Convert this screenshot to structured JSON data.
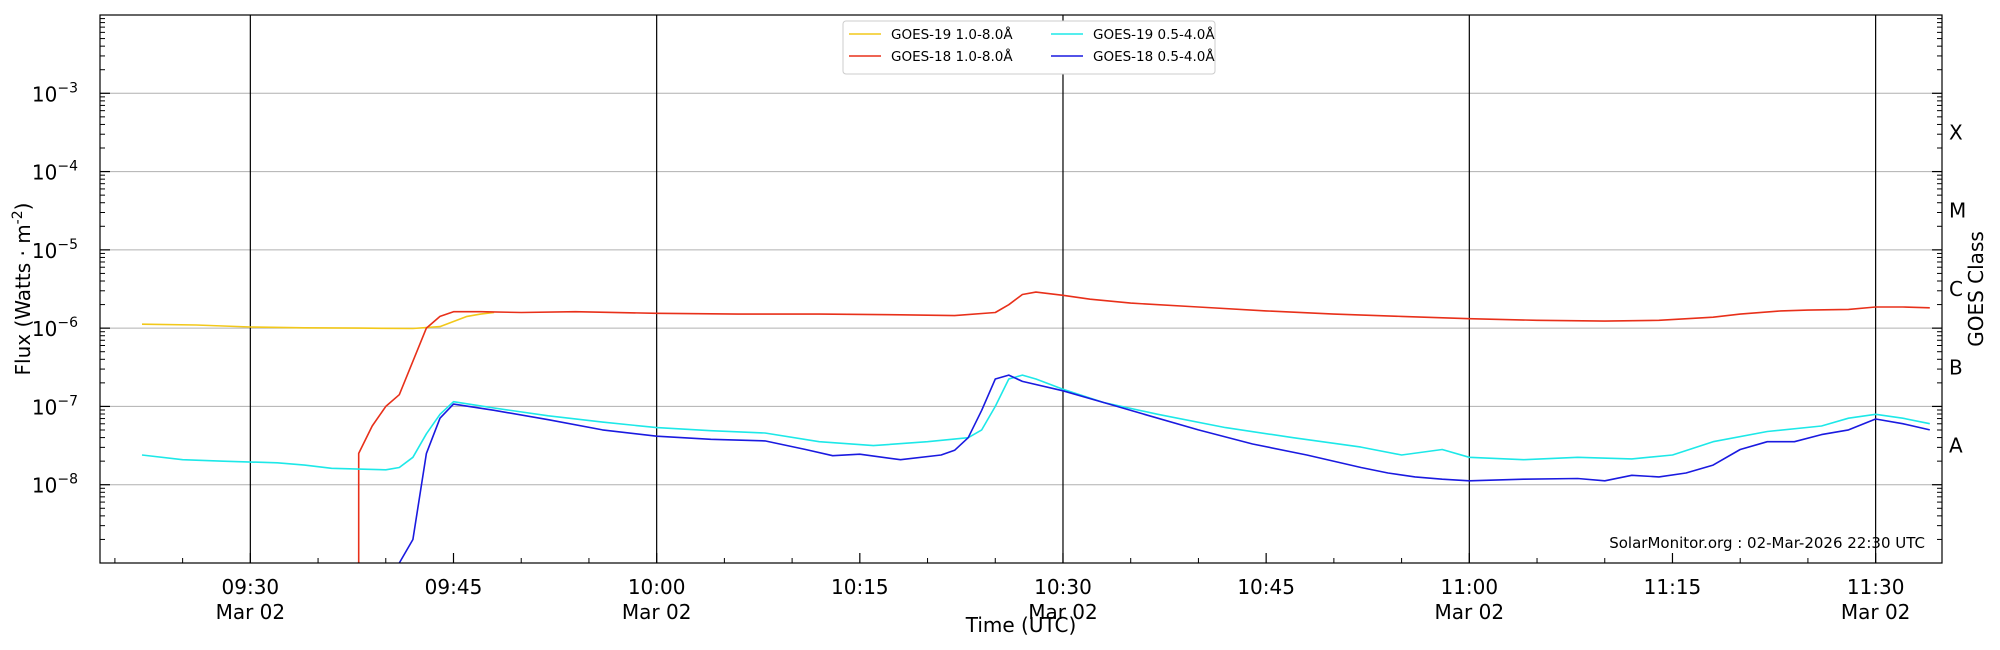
{
  "chart_data": {
    "type": "line",
    "title": "",
    "xlabel": "Time (UTC)",
    "ylabel_main": "Flux (Watts · m",
    "ylabel_sup": "-2",
    "ylabel_close": ")",
    "ylabel_right": "GOES Class",
    "yscale": "log",
    "ylim_exp": [
      -9,
      0
    ],
    "xlim_min": [
      -8,
      198
    ],
    "grid": "horizontal",
    "legend_position": "top-center",
    "y_ticks": [
      {
        "exp": -3,
        "label": "10",
        "sup": "−3"
      },
      {
        "exp": -4,
        "label": "10",
        "sup": "−4"
      },
      {
        "exp": -5,
        "label": "10",
        "sup": "−5"
      },
      {
        "exp": -6,
        "label": "10",
        "sup": "−6"
      },
      {
        "exp": -7,
        "label": "10",
        "sup": "−7"
      },
      {
        "exp": -8,
        "label": "10",
        "sup": "−8"
      }
    ],
    "x_ticks": [
      {
        "min": 0,
        "label": "09:30",
        "sub": "Mar 02",
        "vline": true
      },
      {
        "min": 15,
        "label": "09:45",
        "sub": "",
        "vline": false
      },
      {
        "min": 30,
        "label": "10:00",
        "sub": "Mar 02",
        "vline": true
      },
      {
        "min": 45,
        "label": "10:15",
        "sub": "",
        "vline": false
      },
      {
        "min": 60,
        "label": "10:30",
        "sub": "Mar 02",
        "vline": true
      },
      {
        "min": 75,
        "label": "10:45",
        "sub": "",
        "vline": false
      },
      {
        "min": 90,
        "label": "11:00",
        "sub": "Mar 02",
        "vline": true
      },
      {
        "min": 105,
        "label": "11:15",
        "sub": "",
        "vline": false
      },
      {
        "min": 120,
        "label": "11:30",
        "sub": "Mar 02",
        "vline": true
      }
    ],
    "goes_classes": [
      {
        "label": "X",
        "exp": -3.5
      },
      {
        "label": "M",
        "exp": -4.5
      },
      {
        "label": "C",
        "exp": -5.5
      },
      {
        "label": "B",
        "exp": -6.5
      },
      {
        "label": "A",
        "exp": -7.5
      }
    ],
    "annotation": "SolarMonitor.org : 02-Mar-2026 22:30 UTC",
    "series": [
      {
        "name": "GOES-19 1.0-8.0Å",
        "color": "#f2c81a",
        "points": [
          [
            -8,
            -5.95
          ],
          [
            -4,
            -5.96
          ],
          [
            0,
            -5.985
          ],
          [
            4,
            -5.995
          ],
          [
            8,
            -6.0
          ],
          [
            12,
            -6.005
          ],
          [
            14,
            -5.98
          ],
          [
            16,
            -5.85
          ],
          [
            17,
            -5.82
          ],
          [
            18,
            -5.8
          ]
        ]
      },
      {
        "name": "GOES-18 1.0-8.0Å",
        "color": "#e8301a",
        "points": [
          [
            8,
            -9.0
          ],
          [
            8,
            -7.6
          ],
          [
            9,
            -7.25
          ],
          [
            10,
            -7.0
          ],
          [
            11,
            -6.85
          ],
          [
            13,
            -6.0
          ],
          [
            14,
            -5.85
          ],
          [
            15,
            -5.79
          ],
          [
            17,
            -5.79
          ],
          [
            20,
            -5.8
          ],
          [
            24,
            -5.79
          ],
          [
            30,
            -5.81
          ],
          [
            36,
            -5.82
          ],
          [
            42,
            -5.82
          ],
          [
            48,
            -5.83
          ],
          [
            52,
            -5.84
          ],
          [
            55,
            -5.8
          ],
          [
            56,
            -5.7
          ],
          [
            57,
            -5.57
          ],
          [
            58,
            -5.54
          ],
          [
            60,
            -5.58
          ],
          [
            62,
            -5.63
          ],
          [
            65,
            -5.68
          ],
          [
            70,
            -5.73
          ],
          [
            75,
            -5.78
          ],
          [
            80,
            -5.82
          ],
          [
            85,
            -5.85
          ],
          [
            90,
            -5.88
          ],
          [
            95,
            -5.9
          ],
          [
            100,
            -5.91
          ],
          [
            104,
            -5.9
          ],
          [
            108,
            -5.86
          ],
          [
            110,
            -5.82
          ],
          [
            113,
            -5.78
          ],
          [
            115,
            -5.77
          ],
          [
            118,
            -5.76
          ],
          [
            120,
            -5.73
          ],
          [
            122,
            -5.73
          ],
          [
            124,
            -5.74
          ]
        ]
      },
      {
        "name": "GOES-19 0.5-4.0Å",
        "color": "#1de8e8",
        "points": [
          [
            -8,
            -7.62
          ],
          [
            -5,
            -7.68
          ],
          [
            -2,
            -7.7
          ],
          [
            2,
            -7.72
          ],
          [
            4,
            -7.75
          ],
          [
            6,
            -7.79
          ],
          [
            8,
            -7.8
          ],
          [
            10,
            -7.81
          ],
          [
            11,
            -7.78
          ],
          [
            12,
            -7.65
          ],
          [
            13,
            -7.35
          ],
          [
            14,
            -7.1
          ],
          [
            15,
            -6.94
          ],
          [
            18,
            -7.02
          ],
          [
            22,
            -7.12
          ],
          [
            26,
            -7.2
          ],
          [
            30,
            -7.27
          ],
          [
            34,
            -7.31
          ],
          [
            38,
            -7.34
          ],
          [
            42,
            -7.45
          ],
          [
            46,
            -7.5
          ],
          [
            50,
            -7.45
          ],
          [
            53,
            -7.4
          ],
          [
            54,
            -7.3
          ],
          [
            55,
            -7.0
          ],
          [
            56,
            -6.65
          ],
          [
            57,
            -6.6
          ],
          [
            58,
            -6.65
          ],
          [
            60,
            -6.78
          ],
          [
            63,
            -6.95
          ],
          [
            67,
            -7.1
          ],
          [
            72,
            -7.27
          ],
          [
            77,
            -7.4
          ],
          [
            82,
            -7.52
          ],
          [
            85,
            -7.62
          ],
          [
            88,
            -7.55
          ],
          [
            90,
            -7.65
          ],
          [
            94,
            -7.68
          ],
          [
            98,
            -7.65
          ],
          [
            102,
            -7.67
          ],
          [
            105,
            -7.62
          ],
          [
            108,
            -7.45
          ],
          [
            112,
            -7.32
          ],
          [
            116,
            -7.25
          ],
          [
            118,
            -7.15
          ],
          [
            120,
            -7.1
          ],
          [
            122,
            -7.15
          ],
          [
            124,
            -7.22
          ]
        ]
      },
      {
        "name": "GOES-18 0.5-4.0Å",
        "color": "#1a1ae0",
        "points": [
          [
            11,
            -9.0
          ],
          [
            12,
            -8.7
          ],
          [
            13,
            -7.6
          ],
          [
            14,
            -7.15
          ],
          [
            15,
            -6.97
          ],
          [
            18,
            -7.05
          ],
          [
            22,
            -7.17
          ],
          [
            26,
            -7.3
          ],
          [
            30,
            -7.38
          ],
          [
            34,
            -7.42
          ],
          [
            38,
            -7.44
          ],
          [
            41,
            -7.55
          ],
          [
            43,
            -7.63
          ],
          [
            45,
            -7.61
          ],
          [
            48,
            -7.68
          ],
          [
            51,
            -7.62
          ],
          [
            52,
            -7.56
          ],
          [
            53,
            -7.4
          ],
          [
            54,
            -7.05
          ],
          [
            55,
            -6.65
          ],
          [
            56,
            -6.6
          ],
          [
            57,
            -6.68
          ],
          [
            60,
            -6.8
          ],
          [
            63,
            -6.95
          ],
          [
            66,
            -7.1
          ],
          [
            70,
            -7.3
          ],
          [
            74,
            -7.48
          ],
          [
            78,
            -7.62
          ],
          [
            82,
            -7.78
          ],
          [
            84,
            -7.85
          ],
          [
            86,
            -7.9
          ],
          [
            88,
            -7.93
          ],
          [
            90,
            -7.95
          ],
          [
            94,
            -7.93
          ],
          [
            98,
            -7.92
          ],
          [
            100,
            -7.95
          ],
          [
            102,
            -7.88
          ],
          [
            104,
            -7.9
          ],
          [
            106,
            -7.85
          ],
          [
            108,
            -7.75
          ],
          [
            110,
            -7.55
          ],
          [
            112,
            -7.45
          ],
          [
            114,
            -7.45
          ],
          [
            116,
            -7.36
          ],
          [
            118,
            -7.3
          ],
          [
            120,
            -7.16
          ],
          [
            122,
            -7.22
          ],
          [
            124,
            -7.3
          ]
        ]
      }
    ]
  }
}
